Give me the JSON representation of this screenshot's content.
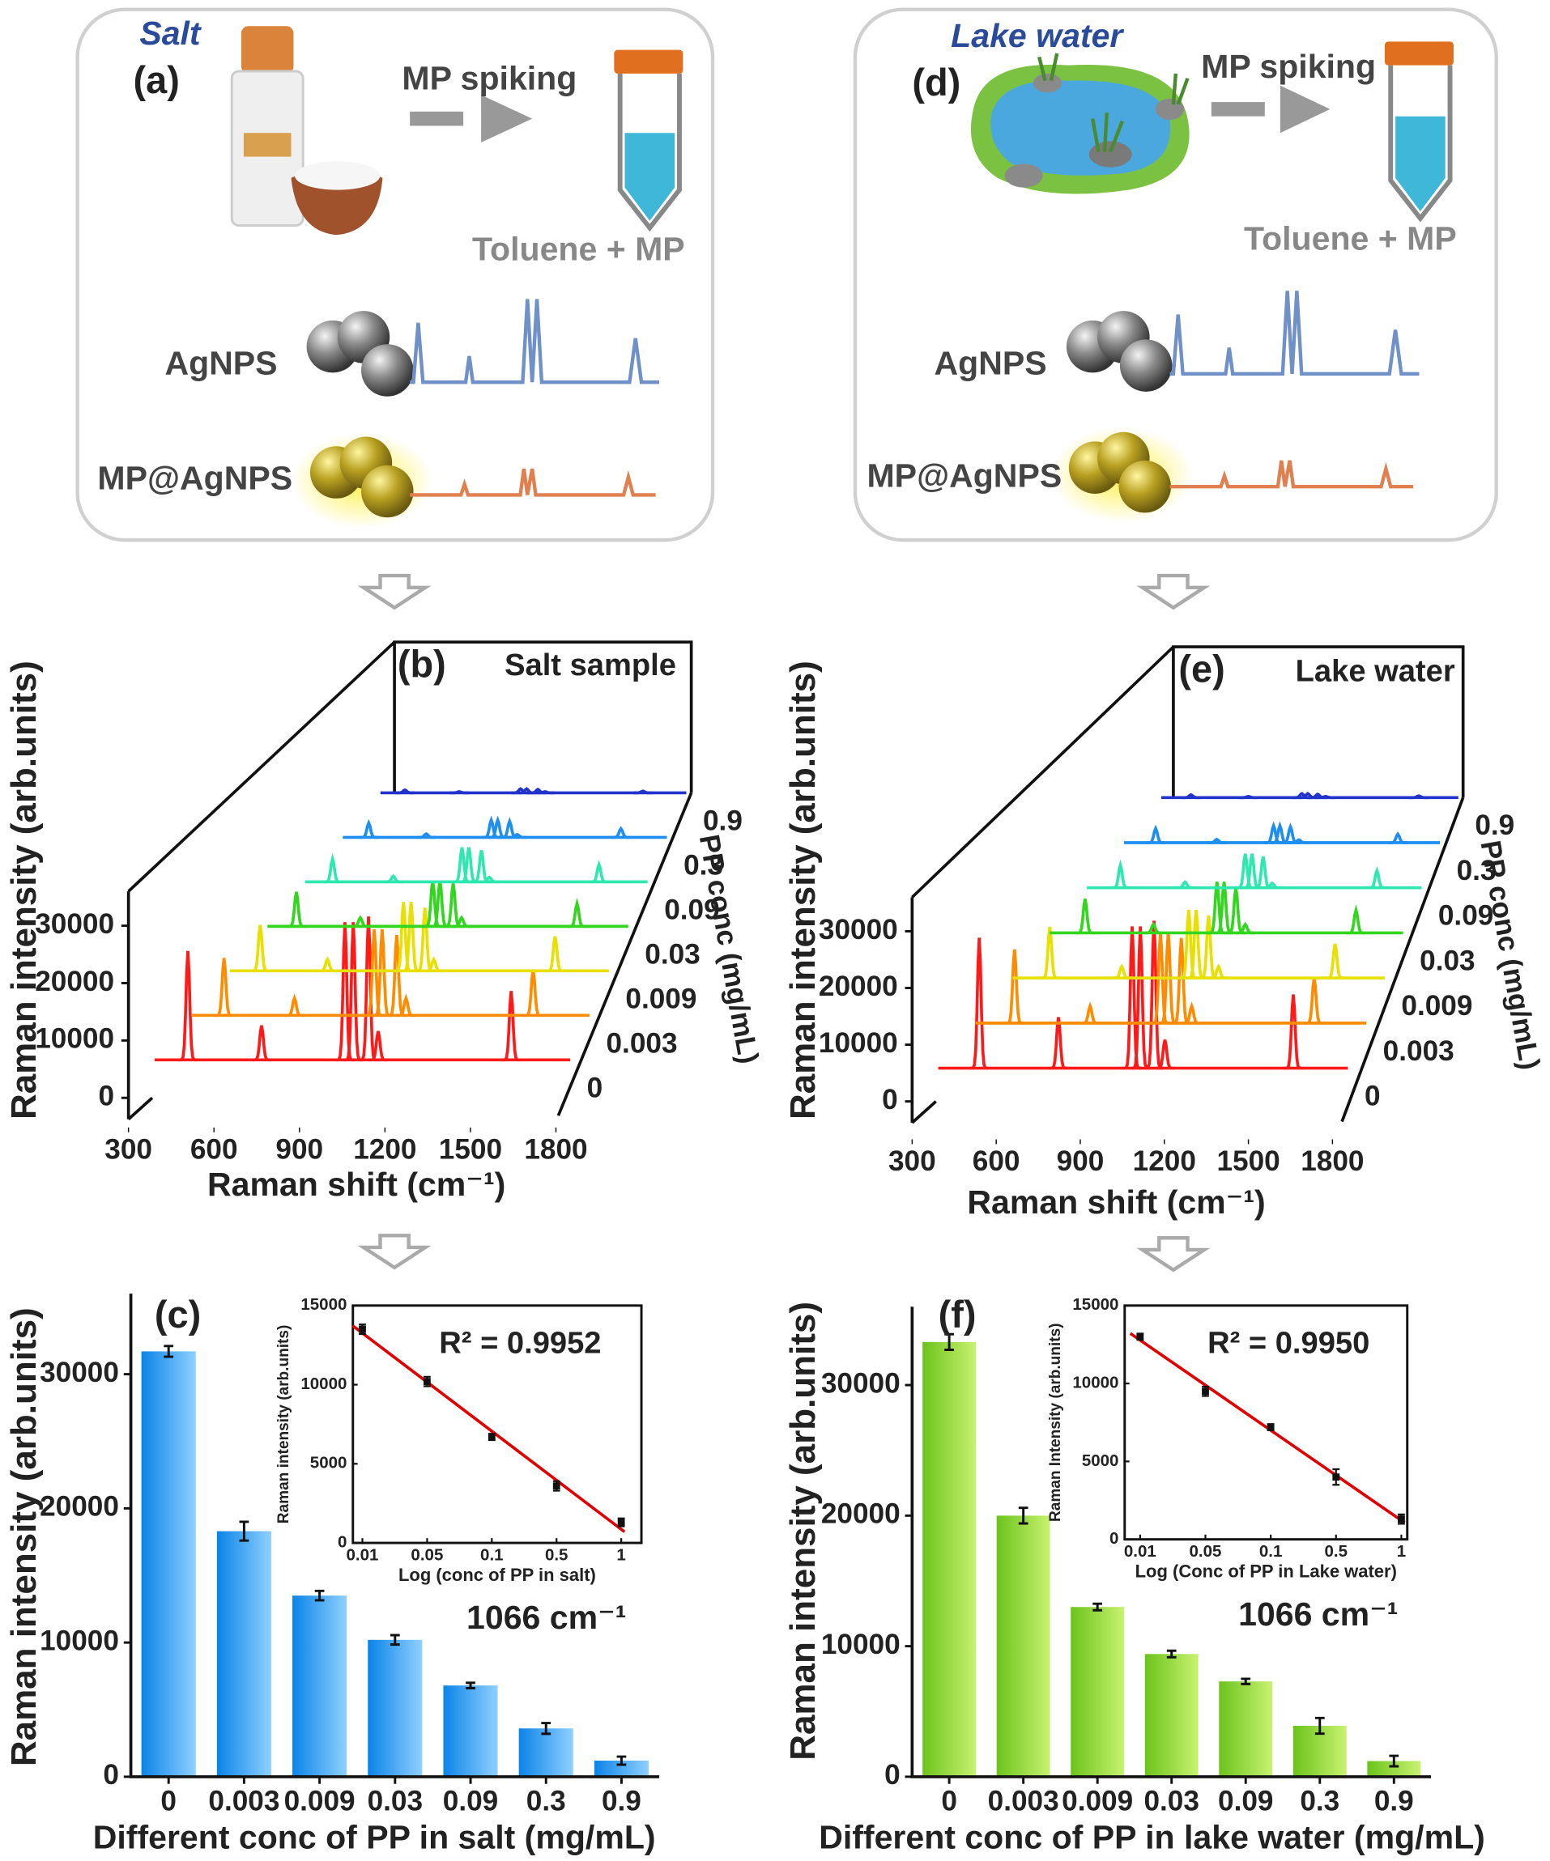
{
  "schematics": [
    {
      "label": "(a)",
      "sample": "Salt",
      "spiking": "MP spiking",
      "product": "Toluene + MP",
      "probe": "AgNPS",
      "complex": "MP@AgNPS"
    },
    {
      "label": "(d)",
      "sample": "Lake water",
      "spiking": "MP spiking",
      "product": "Toluene + MP",
      "probe": "AgNPS",
      "complex": "MP@AgNPS"
    }
  ],
  "chart_data": [
    {
      "type": "waterfall",
      "label": "(b)",
      "title": "Salt sample",
      "ylabel": "Raman intensity (arb.units)",
      "xlabel": "Raman shift (cm⁻¹)",
      "zlabel": "PP conc (mg/mL)",
      "xlim": [
        300,
        1800
      ],
      "xticks": [
        300,
        600,
        900,
        1200,
        1500,
        1800
      ],
      "ylim": [
        0,
        36000
      ],
      "yticks": [
        0,
        10000,
        20000,
        30000
      ],
      "peaks": [
        420,
        686,
        987,
        1017,
        1072,
        1107,
        1587
      ],
      "series": [
        {
          "name": "0",
          "color": "#ff1a1a",
          "values": [
            19000,
            6000,
            24000,
            24000,
            25000,
            5000,
            12000
          ]
        },
        {
          "name": "0.003",
          "color": "#ff8c00",
          "values": [
            10000,
            3000,
            15000,
            15000,
            14000,
            3000,
            8000
          ]
        },
        {
          "name": "0.009",
          "color": "#e8e000",
          "values": [
            8000,
            2000,
            12000,
            12000,
            11000,
            2000,
            6000
          ]
        },
        {
          "name": "0.03",
          "color": "#33d61e",
          "values": [
            6000,
            1500,
            8000,
            8000,
            7500,
            1500,
            4000
          ]
        },
        {
          "name": "0.09",
          "color": "#2ee8b0",
          "values": [
            4000,
            1000,
            6000,
            6000,
            5500,
            800,
            3000
          ]
        },
        {
          "name": "0.3",
          "color": "#1e8ff0",
          "values": [
            2500,
            600,
            3000,
            3000,
            2800,
            500,
            1500
          ]
        },
        {
          "name": "0.9",
          "color": "#2233cc",
          "values": [
            500,
            200,
            700,
            700,
            600,
            200,
            300
          ]
        }
      ]
    },
    {
      "type": "waterfall",
      "label": "(e)",
      "title": "Lake water",
      "ylabel": "Raman intensity (arb.units)",
      "xlabel": "Raman shift (cm⁻¹)",
      "zlabel": "PP conc (mg/mL)",
      "xlim": [
        300,
        1800
      ],
      "xticks": [
        300,
        600,
        900,
        1200,
        1500,
        1800
      ],
      "ylim": [
        0,
        36000
      ],
      "yticks": [
        0,
        10000,
        20000,
        30000
      ],
      "peaks": [
        450,
        740,
        1010,
        1040,
        1090,
        1130,
        1600
      ],
      "series": [
        {
          "name": "0",
          "color": "#ff1a1a",
          "values": [
            23000,
            9000,
            25000,
            25000,
            26000,
            5000,
            13000
          ]
        },
        {
          "name": "0.003",
          "color": "#ff8c00",
          "values": [
            13000,
            3000,
            16000,
            16000,
            15000,
            3000,
            8000
          ]
        },
        {
          "name": "0.009",
          "color": "#e8e000",
          "values": [
            9000,
            2000,
            12000,
            12000,
            11000,
            2000,
            6000
          ]
        },
        {
          "name": "0.03",
          "color": "#33d61e",
          "values": [
            6000,
            1500,
            9000,
            9000,
            8000,
            1500,
            4000
          ]
        },
        {
          "name": "0.09",
          "color": "#2ee8b0",
          "values": [
            4000,
            1000,
            6000,
            6000,
            5500,
            800,
            3000
          ]
        },
        {
          "name": "0.3",
          "color": "#1e8ff0",
          "values": [
            2500,
            600,
            3000,
            3000,
            2800,
            500,
            1500
          ]
        },
        {
          "name": "0.9",
          "color": "#2233cc",
          "values": [
            500,
            200,
            700,
            700,
            600,
            200,
            300
          ]
        }
      ]
    },
    {
      "type": "bar",
      "label": "(c)",
      "ylabel": "Raman intensity (arb.units)",
      "xlabel": "Different conc of PP in salt (mg/mL)",
      "annotation": "1066 cm⁻¹",
      "categories": [
        "0",
        "0.003",
        "0.009",
        "0.03",
        "0.09",
        "0.3",
        "0.9"
      ],
      "values": [
        31700,
        18300,
        13500,
        10200,
        6800,
        3600,
        1200
      ],
      "errors": [
        400,
        700,
        350,
        350,
        200,
        400,
        300
      ],
      "ylim": [
        0,
        36000
      ],
      "yticks": [
        0,
        10000,
        20000,
        30000
      ],
      "color": [
        "#0a84e8",
        "#8fd0ff"
      ]
    },
    {
      "type": "scatter_fit",
      "ylabel": "Raman intensity (arb.units)",
      "xlabel": "Log (conc of PP in salt)",
      "annotation": "R² = 0.9952",
      "categories": [
        "0.01",
        "0.05",
        "0.1",
        "0.5",
        "1"
      ],
      "values": [
        13500,
        10200,
        6700,
        3600,
        1300
      ],
      "errors": [
        300,
        300,
        200,
        300,
        250
      ],
      "ylim": [
        0,
        15000
      ],
      "yticks": [
        0,
        5000,
        10000,
        15000
      ],
      "color": "#e00000"
    },
    {
      "type": "bar",
      "label": "(f)",
      "ylabel": "Raman intensity (arb.units)",
      "xlabel": "Different conc of PP in lake water (mg/mL)",
      "annotation": "1066 cm⁻¹",
      "categories": [
        "0",
        "0.003",
        "0.009",
        "0.03",
        "0.09",
        "0.3",
        "0.9"
      ],
      "values": [
        33300,
        20000,
        13000,
        9400,
        7300,
        3900,
        1200
      ],
      "errors": [
        600,
        600,
        250,
        250,
        200,
        600,
        400
      ],
      "ylim": [
        0,
        36000
      ],
      "yticks": [
        0,
        10000,
        20000,
        30000
      ],
      "color": [
        "#6cc31c",
        "#c8f270"
      ]
    },
    {
      "type": "scatter_fit",
      "ylabel": "Raman Intensity (arb.units)",
      "xlabel": "Log (Conc of PP in Lake water)",
      "annotation": "R² = 0.9950",
      "categories": [
        "0.01",
        "0.05",
        "0.1",
        "0.5",
        "1"
      ],
      "values": [
        13000,
        9500,
        7200,
        4000,
        1300
      ],
      "errors": [
        200,
        300,
        200,
        500,
        300
      ],
      "ylim": [
        0,
        15000
      ],
      "yticks": [
        0,
        5000,
        10000,
        15000
      ],
      "color": "#e00000"
    }
  ]
}
